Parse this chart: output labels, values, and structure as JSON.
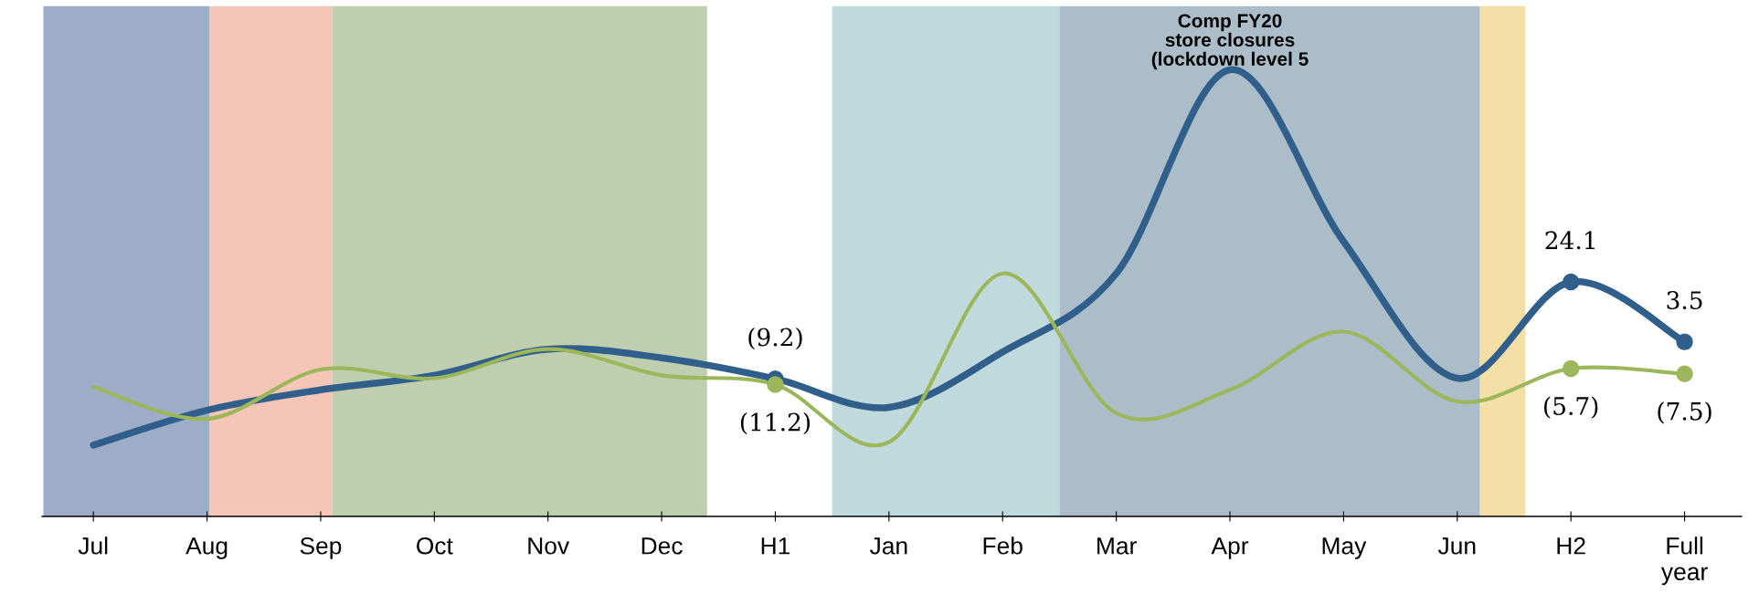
{
  "chart_data": {
    "type": "line",
    "grid": false,
    "legend": false,
    "tick_labels": "x",
    "categories": [
      "Jul",
      "Aug",
      "Sep",
      "Oct",
      "Nov",
      "Dec",
      "H1",
      "Jan",
      "Feb",
      "Mar",
      "Apr",
      "May",
      "Jun",
      "H2",
      "Full\nyear"
    ],
    "series": [
      {
        "color": "#2f5f8a",
        "values": [
          -32,
          -20,
          -13,
          -8,
          1,
          -2,
          -9.2,
          -19,
          0,
          27,
          97,
          38,
          -9,
          24.1,
          3.5
        ]
      },
      {
        "color": "#9cb65a",
        "values": [
          -12,
          -23,
          -6,
          -9,
          1,
          -8,
          -11.2,
          -31,
          27,
          -21,
          -13,
          7,
          -17,
          -5.7,
          -7.5
        ]
      },
      {
        "type": "scatter",
        "marker": "circle",
        "color": "#2f5f8a",
        "values": [
          null,
          null,
          null,
          null,
          null,
          null,
          -9.2,
          null,
          null,
          null,
          null,
          null,
          null,
          24.1,
          3.5
        ],
        "value_labels": [
          null,
          null,
          null,
          null,
          null,
          null,
          "(9.2)",
          null,
          null,
          null,
          null,
          null,
          null,
          "24.1",
          "3.5"
        ]
      },
      {
        "type": "scatter",
        "marker": "circle",
        "color": "#9cb65a",
        "values": [
          null,
          null,
          null,
          null,
          null,
          null,
          -11.2,
          null,
          null,
          null,
          null,
          null,
          null,
          -5.7,
          -7.5
        ],
        "value_labels": [
          null,
          null,
          null,
          null,
          null,
          null,
          "(11.2)",
          null,
          null,
          null,
          null,
          null,
          null,
          "(5.7)",
          "(7.5)"
        ]
      }
    ],
    "annotations": [
      "Comp FY20\nstore closures\n(lockdown level 5"
    ]
  }
}
